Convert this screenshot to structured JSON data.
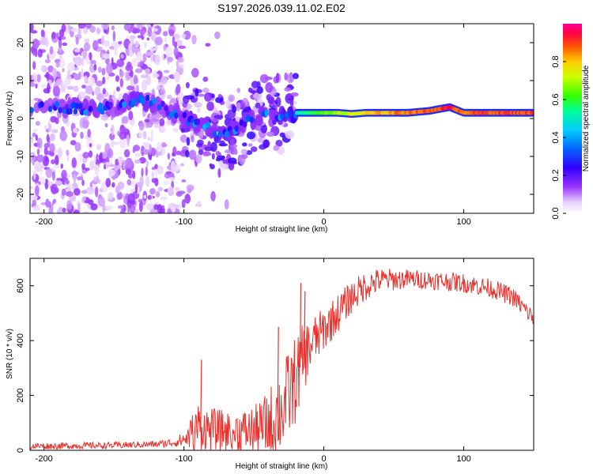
{
  "title": "S197.2026.039.11.02.E02",
  "chart_data": [
    {
      "type": "heatmap",
      "name": "spectrogram",
      "xlabel": "Height of straight line (km)",
      "ylabel": "Frequency (Hz)",
      "xlim": [
        -210,
        150
      ],
      "ylim": [
        -25,
        25
      ],
      "xticks": [
        -200,
        -100,
        0,
        100
      ],
      "yticks": [
        -20,
        -10,
        0,
        10,
        20
      ],
      "colorbar": {
        "label": "Normalized spectral amplitude",
        "range": [
          0,
          1
        ],
        "ticks": [
          0.0,
          0.2,
          0.4,
          0.6,
          0.8
        ],
        "tick_labels": [
          "0.0",
          "0.2",
          "0.4",
          "0.6",
          "0.8"
        ]
      },
      "ridge": [
        {
          "x": -190,
          "y": 3,
          "a": 0.25
        },
        {
          "x": -170,
          "y": 2.5,
          "a": 0.3
        },
        {
          "x": -150,
          "y": 3,
          "a": 0.25
        },
        {
          "x": -130,
          "y": 5,
          "a": 0.35
        },
        {
          "x": -115,
          "y": 3,
          "a": 0.25
        },
        {
          "x": -100,
          "y": 0,
          "a": 0.3
        },
        {
          "x": -85,
          "y": -2,
          "a": 0.3
        },
        {
          "x": -75,
          "y": -4,
          "a": 0.3
        },
        {
          "x": -60,
          "y": -2,
          "a": 0.3
        },
        {
          "x": -45,
          "y": 1,
          "a": 0.3
        },
        {
          "x": -35,
          "y": 1,
          "a": 0.3
        },
        {
          "x": -25,
          "y": 1.5,
          "a": 0.45
        },
        {
          "x": -10,
          "y": 1.5,
          "a": 0.6
        },
        {
          "x": 0,
          "y": 1.5,
          "a": 0.65
        },
        {
          "x": 10,
          "y": 1.5,
          "a": 0.7
        },
        {
          "x": 20,
          "y": 1.2,
          "a": 0.75
        },
        {
          "x": 30,
          "y": 1.5,
          "a": 0.8
        },
        {
          "x": 45,
          "y": 1.5,
          "a": 0.85
        },
        {
          "x": 60,
          "y": 1.5,
          "a": 0.9
        },
        {
          "x": 75,
          "y": 2.0,
          "a": 0.9
        },
        {
          "x": 90,
          "y": 3.0,
          "a": 0.95
        },
        {
          "x": 100,
          "y": 1.5,
          "a": 0.9
        },
        {
          "x": 115,
          "y": 1.5,
          "a": 0.92
        },
        {
          "x": 130,
          "y": 1.5,
          "a": 0.92
        },
        {
          "x": 150,
          "y": 1.5,
          "a": 0.92
        }
      ]
    },
    {
      "type": "line",
      "name": "snr",
      "xlabel": "Height of straight line (km)",
      "ylabel": "SNR (10 * v/v)",
      "xlim": [
        -210,
        150
      ],
      "ylim": [
        0,
        700
      ],
      "xticks": [
        -200,
        -100,
        0,
        100
      ],
      "yticks": [
        0,
        200,
        400,
        600
      ],
      "color": "#e8302c",
      "envelope": {
        "x": [
          -210,
          -150,
          -120,
          -105,
          -98,
          -93,
          -90,
          -85,
          -70,
          -55,
          -45,
          -38,
          -30,
          -25,
          -20,
          -15,
          -10,
          0,
          10,
          20,
          30,
          40,
          60,
          80,
          100,
          120,
          135,
          150
        ],
        "base": [
          15,
          18,
          22,
          30,
          45,
          70,
          90,
          80,
          70,
          70,
          80,
          100,
          150,
          200,
          260,
          330,
          380,
          440,
          500,
          560,
          600,
          620,
          625,
          620,
          610,
          590,
          560,
          480
        ],
        "amp": [
          12,
          12,
          12,
          18,
          40,
          80,
          90,
          80,
          75,
          80,
          100,
          140,
          160,
          170,
          160,
          130,
          100,
          80,
          70,
          60,
          55,
          45,
          35,
          35,
          35,
          35,
          35,
          35
        ]
      },
      "spikes": [
        {
          "x": -88,
          "y": 330
        },
        {
          "x": -17,
          "y": 610
        },
        {
          "x": -14,
          "y": 580
        },
        {
          "x": -33,
          "y": 450
        }
      ]
    }
  ]
}
